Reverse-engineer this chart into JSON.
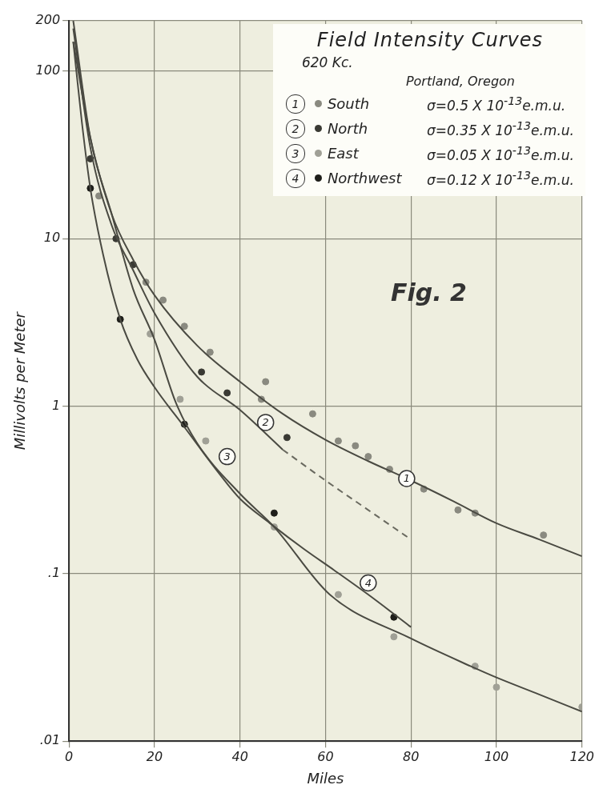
{
  "chart_data": {
    "type": "line",
    "title": "Field Intensity Curves",
    "subtitle": "620 Kc.",
    "xlabel": "Miles",
    "ylabel": "Millivolts per Meter",
    "annotations": [
      "Portland, Oregon",
      "σ=0.5 X 10$^{-13}$e.m.u.",
      "σ=0.35 X 10$^{-13}$e.m.u.",
      "σ=0.05 X 10$^{-13}$e.m.u.",
      "σ=0.12 X 10$^{-13}$e.m.u.",
      "Fig. 2",
      {
        "text": "1",
        "x": 79,
        "y": 0.37
      },
      {
        "text": "2",
        "x": 46,
        "y": 0.8
      },
      {
        "text": "3",
        "x": 37,
        "y": 0.5
      },
      {
        "text": "4",
        "x": 70,
        "y": 0.088
      }
    ],
    "xlim": [
      0,
      120
    ],
    "xticks": [
      0,
      20,
      40,
      60,
      80,
      100,
      120
    ],
    "ylim": [
      0.01,
      200
    ],
    "yticks": [
      {
        "value": 0.01,
        "label": ".01"
      },
      {
        "value": 0.1,
        "label": ".1"
      },
      1,
      10,
      100,
      200
    ],
    "log": "y",
    "grid": true,
    "legend": "top right",
    "series": [
      {
        "type": "line",
        "color": "#4a4a42",
        "x": [
          1,
          5,
          10,
          15,
          20,
          30,
          40,
          50,
          60,
          70,
          79,
          90,
          100,
          110,
          120
        ],
        "values": [
          150,
          40,
          14,
          7.5,
          4.6,
          2.3,
          1.4,
          0.9,
          0.63,
          0.47,
          0.37,
          0.27,
          0.2,
          0.16,
          0.127
        ]
      },
      {
        "type": "line",
        "color": "#4a4a42",
        "x": [
          1,
          5,
          10,
          15,
          20,
          30,
          40,
          50
        ],
        "values": [
          180,
          35,
          12,
          6.5,
          3.6,
          1.5,
          0.95,
          0.55
        ]
      },
      {
        "type": "line",
        "color": "#6a6a60",
        "line_style": "dashed",
        "x": [
          50,
          60,
          70,
          80
        ],
        "values": [
          0.55,
          0.36,
          0.24,
          0.16
        ]
      },
      {
        "type": "line",
        "color": "#4a4a42",
        "x": [
          1,
          5,
          10,
          15,
          20,
          25,
          30,
          40,
          48,
          61,
          80,
          94,
          100,
          110,
          120
        ],
        "values": [
          200,
          40,
          14,
          5,
          2.5,
          1.05,
          0.6,
          0.3,
          0.19,
          0.075,
          0.041,
          0.028,
          0.024,
          0.019,
          0.015
        ]
      },
      {
        "type": "line",
        "color": "#4a4a42",
        "x": [
          1,
          3,
          5,
          8,
          12,
          16,
          20,
          27,
          35,
          40,
          47,
          55,
          62,
          70,
          80
        ],
        "values": [
          150,
          50,
          20,
          8,
          3.3,
          1.9,
          1.3,
          0.75,
          0.4,
          0.28,
          0.2,
          0.14,
          0.105,
          0.075,
          0.048
        ]
      },
      {
        "type": "scatter",
        "name": "South",
        "color": "#8a8a80",
        "marker": "circle",
        "x": [
          7,
          18,
          22,
          27,
          33,
          45,
          46,
          57,
          63,
          67,
          70,
          75,
          83,
          91,
          95,
          111
        ],
        "values": [
          18,
          5.5,
          4.3,
          3,
          2.1,
          1.1,
          1.4,
          0.9,
          0.62,
          0.58,
          0.5,
          0.42,
          0.32,
          0.24,
          0.23,
          0.17
        ]
      },
      {
        "type": "scatter",
        "name": "North",
        "color": "#3a3a34",
        "marker": "circle",
        "x": [
          5,
          11,
          15,
          31,
          37,
          51
        ],
        "values": [
          30,
          10,
          7,
          1.6,
          1.2,
          0.65
        ]
      },
      {
        "type": "scatter",
        "name": "East",
        "color": "#a0a096",
        "marker": "circle",
        "x": [
          19,
          26,
          32,
          48,
          63,
          76,
          95,
          100,
          120
        ],
        "values": [
          2.7,
          1.1,
          0.62,
          0.19,
          0.075,
          0.042,
          0.028,
          0.021,
          0.016
        ]
      },
      {
        "type": "scatter",
        "name": "Northwest",
        "color": "#1e1e1a",
        "marker": "circle",
        "x": [
          5,
          12,
          27,
          48,
          76
        ],
        "values": [
          20,
          3.3,
          0.78,
          0.23,
          0.055
        ]
      }
    ]
  }
}
